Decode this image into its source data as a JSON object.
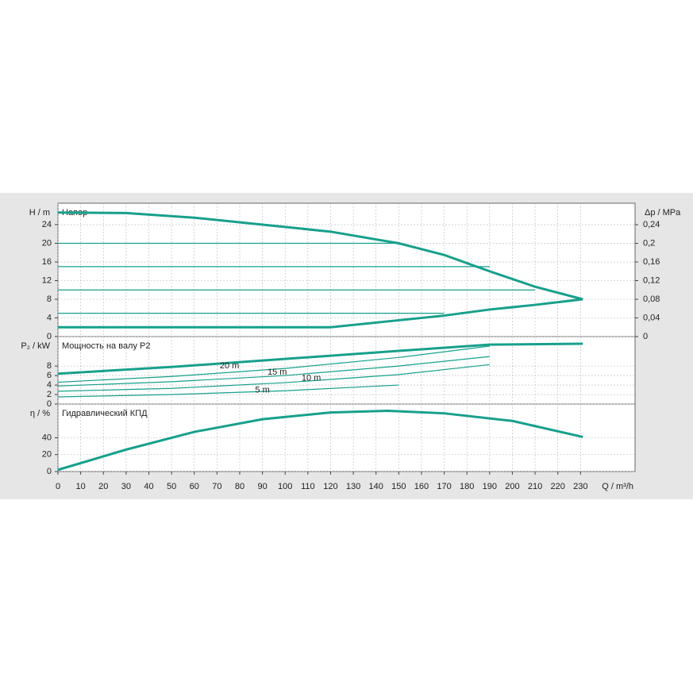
{
  "chart_data": [
    {
      "type": "line",
      "title": "Напор",
      "ylabel": "H / m",
      "y2label": "Δp / MPa",
      "x": [
        0,
        30,
        60,
        90,
        120,
        150,
        170,
        190,
        210,
        231
      ],
      "xlim": [
        0,
        254
      ],
      "ylim": [
        0,
        28.6
      ],
      "yticks": [
        0,
        4,
        8,
        12,
        16,
        20,
        24
      ],
      "y2lim": [
        0,
        0.286
      ],
      "y2ticks": [
        0,
        {
          "value": 0.04,
          "label": "0,04"
        },
        {
          "value": 0.08,
          "label": "0,08"
        },
        {
          "value": 0.12,
          "label": "0,12"
        },
        {
          "value": 0.16,
          "label": "0,16"
        },
        {
          "value": 0.2,
          "label": "0,2"
        },
        {
          "value": 0.24,
          "label": "0,24"
        }
      ],
      "grid": true,
      "series": [
        {
          "color": "#17a08c",
          "width": 3,
          "values": [
            26.6,
            26.5,
            25.5,
            24,
            22.5,
            20,
            17.5,
            14,
            10.7,
            8
          ]
        },
        {
          "color": "#17a08c",
          "width": 3,
          "values": [
            2,
            2,
            2,
            2,
            2,
            3.5,
            4.5,
            5.8,
            6.8,
            8
          ]
        },
        {
          "color": "#17a08c",
          "width": 1.2,
          "values": [
            20,
            20,
            20,
            20,
            20,
            20,
            null,
            null,
            null,
            null
          ]
        },
        {
          "color": "#17a08c",
          "width": 1.2,
          "values": [
            15,
            15,
            15,
            15,
            15,
            15,
            15,
            15,
            null,
            null
          ]
        },
        {
          "color": "#17a08c",
          "width": 1.2,
          "values": [
            10,
            10,
            10,
            10,
            10,
            10,
            10,
            10,
            10,
            null
          ]
        },
        {
          "color": "#17a08c",
          "width": 1.2,
          "values": [
            5,
            5,
            5,
            5,
            5,
            5,
            5,
            null,
            null,
            null
          ]
        }
      ]
    },
    {
      "type": "line",
      "title": "Мощность на валу P2",
      "ylabel": "P₂ / kW",
      "x": [
        0,
        50,
        100,
        150,
        190,
        231
      ],
      "xlim": [
        0,
        254
      ],
      "ylim": [
        0,
        14.2
      ],
      "yticks": [
        0,
        2,
        4,
        6,
        8
      ],
      "grid": true,
      "series": [
        {
          "color": "#17a08c",
          "width": 3,
          "values": [
            6.4,
            7.8,
            9.5,
            11.2,
            12.5,
            12.7
          ]
        },
        {
          "color": "#17a08c",
          "width": 1.2,
          "values": [
            4.6,
            5.8,
            7.5,
            9.8,
            12.2,
            null
          ]
        },
        {
          "color": "#17a08c",
          "width": 1.2,
          "values": [
            3.8,
            4.7,
            6,
            8,
            10,
            null
          ]
        },
        {
          "color": "#17a08c",
          "width": 1.2,
          "values": [
            2.7,
            3.3,
            4.5,
            6.2,
            8.3,
            null
          ]
        },
        {
          "color": "#17a08c",
          "width": 1.2,
          "values": [
            1.5,
            2,
            2.8,
            4,
            null,
            null
          ]
        }
      ],
      "annotations": [
        {
          "text": "20 m",
          "x": 75.5,
          "y": 8
        },
        {
          "text": "15 m",
          "x": 96.5,
          "y": 6.7
        },
        {
          "text": "10 m",
          "x": 111.5,
          "y": 5.4
        },
        {
          "text": "5 m",
          "x": 90,
          "y": 2.9
        }
      ]
    },
    {
      "type": "line",
      "title": "Гидравлический КПД",
      "ylabel": "η / %",
      "xlabel": "Q / m³/h",
      "x": [
        0,
        30,
        60,
        90,
        120,
        145,
        170,
        200,
        231
      ],
      "xlim": [
        0,
        254
      ],
      "ylim": [
        0,
        80
      ],
      "yticks": [
        0,
        20,
        40
      ],
      "xticks": [
        0,
        10,
        20,
        30,
        40,
        50,
        60,
        70,
        80,
        90,
        100,
        110,
        120,
        130,
        140,
        150,
        160,
        170,
        180,
        190,
        200,
        210,
        220,
        230
      ],
      "grid": true,
      "series": [
        {
          "color": "#17a08c",
          "width": 3,
          "values": [
            2,
            26,
            47,
            62,
            70,
            72,
            69,
            60,
            41
          ]
        }
      ]
    }
  ]
}
